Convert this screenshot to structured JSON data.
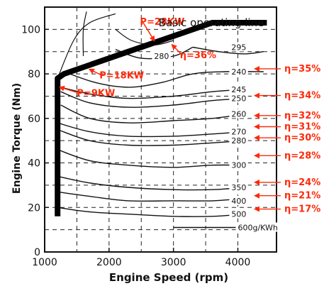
{
  "chart_data": {
    "type": "line",
    "title": "Basic operating line",
    "xlabel": "Engine Speed (rpm)",
    "ylabel": "Engine Torque (Nm)",
    "xlim": [
      1000,
      4600
    ],
    "ylim": [
      0,
      110
    ],
    "xticks": [
      1000,
      2000,
      3000,
      4000
    ],
    "yticks": [
      0,
      20,
      40,
      60,
      80,
      100
    ],
    "grid": true,
    "operating_line": {
      "points": [
        [
          1200,
          16
        ],
        [
          1200,
          78
        ],
        [
          1300,
          80
        ],
        [
          2300,
          90
        ],
        [
          3000,
          97
        ],
        [
          3600,
          103
        ],
        [
          4450,
          103
        ]
      ]
    },
    "bsfc_contours": [
      {
        "label": "280",
        "label_at": [
          2700,
          88
        ],
        "points": [
          [
            2100,
            91
          ],
          [
            2500,
            87
          ],
          [
            3000,
            88
          ],
          [
            3300,
            92
          ]
        ]
      },
      {
        "label": "295",
        "label_at": [
          3900,
          92
        ],
        "points": [
          [
            3300,
            92
          ],
          [
            3700,
            90
          ],
          [
            4100,
            89
          ],
          [
            4400,
            90
          ]
        ]
      },
      {
        "label": "240",
        "label_at": [
          3900,
          81
        ],
        "points": [
          [
            1300,
            81
          ],
          [
            1800,
            76
          ],
          [
            2300,
            74
          ],
          [
            2800,
            76
          ],
          [
            3300,
            80
          ],
          [
            3800,
            81
          ],
          [
            4400,
            81
          ]
        ]
      },
      {
        "label": "245",
        "label_at": [
          3900,
          73
        ],
        "points": [
          [
            1250,
            74
          ],
          [
            1700,
            71
          ],
          [
            2300,
            69
          ],
          [
            3000,
            70
          ],
          [
            3600,
            72
          ],
          [
            4100,
            73
          ]
        ]
      },
      {
        "label": "250",
        "label_at": [
          3900,
          69
        ],
        "points": [
          [
            1250,
            72
          ],
          [
            1700,
            67
          ],
          [
            2300,
            65
          ],
          [
            3000,
            66
          ],
          [
            3600,
            68
          ],
          [
            4100,
            69
          ]
        ]
      },
      {
        "label": "260",
        "label_at": [
          3900,
          62
        ],
        "points": [
          [
            1250,
            66
          ],
          [
            1700,
            60
          ],
          [
            2300,
            58
          ],
          [
            3000,
            59
          ],
          [
            3600,
            60
          ],
          [
            4100,
            62
          ]
        ]
      },
      {
        "label": "270",
        "label_at": [
          3900,
          54
        ],
        "points": [
          [
            1200,
            58
          ],
          [
            1700,
            54
          ],
          [
            2300,
            52
          ],
          [
            3000,
            52
          ],
          [
            3600,
            53
          ],
          [
            4100,
            54
          ]
        ]
      },
      {
        "label": "280",
        "label_at": [
          3900,
          50
        ],
        "points": [
          [
            1200,
            55
          ],
          [
            1700,
            50
          ],
          [
            2300,
            48
          ],
          [
            3000,
            48
          ],
          [
            3600,
            49
          ],
          [
            4100,
            50
          ]
        ]
      },
      {
        "label": "300",
        "label_at": [
          3900,
          39
        ],
        "points": [
          [
            1200,
            46
          ],
          [
            1700,
            41
          ],
          [
            2300,
            39
          ],
          [
            3000,
            38
          ],
          [
            3600,
            39
          ],
          [
            4100,
            39
          ]
        ]
      },
      {
        "label": "350",
        "label_at": [
          3900,
          29
        ],
        "points": [
          [
            1200,
            34
          ],
          [
            1700,
            31
          ],
          [
            2300,
            29
          ],
          [
            3000,
            28
          ],
          [
            3600,
            28
          ],
          [
            4100,
            29
          ]
        ]
      },
      {
        "label": "400",
        "label_at": [
          3900,
          23
        ],
        "points": [
          [
            1200,
            27
          ],
          [
            1700,
            25
          ],
          [
            2300,
            23
          ],
          [
            3000,
            23
          ],
          [
            3600,
            23
          ],
          [
            4100,
            24
          ]
        ]
      },
      {
        "label": "500",
        "label_at": [
          3900,
          17
        ],
        "points": [
          [
            1200,
            20
          ],
          [
            1700,
            18
          ],
          [
            2300,
            17
          ],
          [
            3000,
            16
          ],
          [
            3600,
            16
          ],
          [
            4100,
            17
          ]
        ]
      },
      {
        "label": "600g/KWh",
        "label_at": [
          4000,
          11
        ],
        "points": [
          [
            3000,
            11
          ],
          [
            3600,
            11
          ],
          [
            4200,
            11
          ]
        ]
      }
    ],
    "power_curves": [
      {
        "points": [
          [
            1200,
            78
          ],
          [
            1450,
            95
          ],
          [
            1700,
            103
          ],
          [
            2100,
            107
          ]
        ]
      },
      {
        "points": [
          [
            1600,
            88
          ],
          [
            1600,
            100
          ],
          [
            1650,
            108
          ]
        ]
      },
      {
        "points": [
          [
            2100,
            100
          ],
          [
            2350,
            95
          ],
          [
            2700,
            93
          ],
          [
            3000,
            95
          ]
        ]
      }
    ],
    "power_annotations": [
      {
        "label": "P=28KW",
        "label_at": [
          2480,
          102
        ],
        "arrow_to": [
          2700,
          95
        ]
      },
      {
        "label": "P=18KW",
        "label_at": [
          1850,
          78
        ],
        "arrow_to": [
          1700,
          82
        ]
      },
      {
        "label": "P=9KW",
        "label_at": [
          1500,
          70
        ],
        "arrow_to": [
          1240,
          74
        ]
      },
      {
        "label": "η=36%",
        "label_at": [
          3100,
          87
        ],
        "arrow_to": [
          2980,
          93
        ]
      }
    ],
    "efficiency_labels": [
      {
        "label": "η=35%",
        "y": 81
      },
      {
        "label": "η=34%",
        "y": 69
      },
      {
        "label": "η=32%",
        "y": 60
      },
      {
        "label": "η=31%",
        "y": 55
      },
      {
        "label": "η=30%",
        "y": 50
      },
      {
        "label": "η=28%",
        "y": 42
      },
      {
        "label": "η=24%",
        "y": 30
      },
      {
        "label": "η=21%",
        "y": 24
      },
      {
        "label": "η=17%",
        "y": 18
      }
    ]
  }
}
